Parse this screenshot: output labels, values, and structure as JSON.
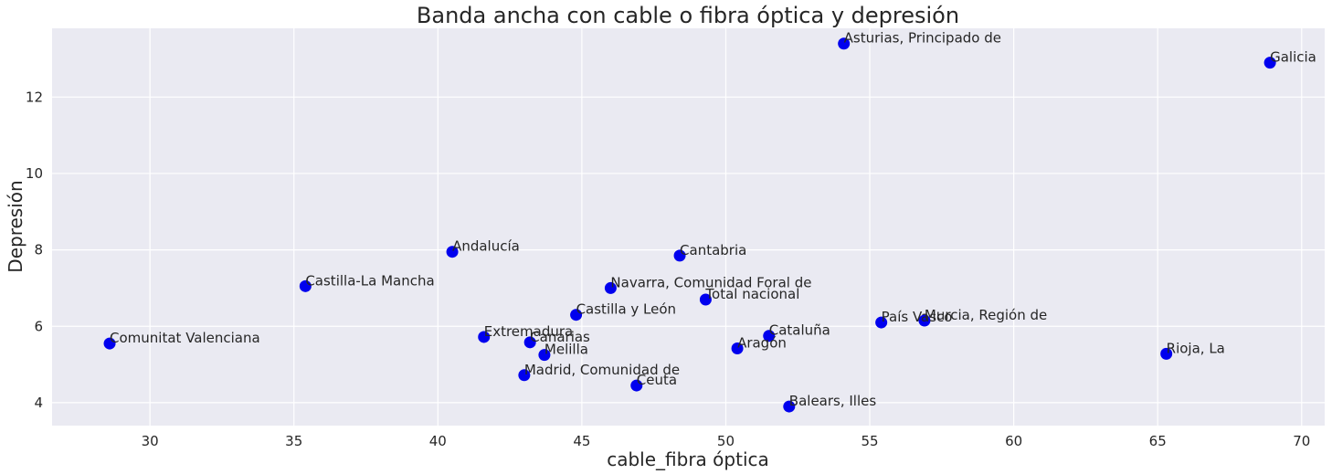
{
  "chart_data": {
    "type": "scatter",
    "title": "Banda ancha con cable o fibra óptica y depresión",
    "xlabel": "cable_fibra óptica",
    "ylabel": "Depresión",
    "xlim": [
      26.6,
      70.8
    ],
    "ylim": [
      3.4,
      13.8
    ],
    "xticks": [
      30,
      35,
      40,
      45,
      50,
      55,
      60,
      65,
      70
    ],
    "yticks": [
      4,
      6,
      8,
      10,
      12
    ],
    "grid": true,
    "point_color": "#0000ee",
    "background_color": "#eaeaf2",
    "points": [
      {
        "label": "Asturias, Principado de",
        "x": 54.1,
        "y": 13.4
      },
      {
        "label": "Galicia",
        "x": 68.9,
        "y": 12.9
      },
      {
        "label": "Andalucía",
        "x": 40.5,
        "y": 7.95
      },
      {
        "label": "Cantabria",
        "x": 48.4,
        "y": 7.85
      },
      {
        "label": "Castilla-La Mancha",
        "x": 35.4,
        "y": 7.05
      },
      {
        "label": "Navarra, Comunidad Foral de",
        "x": 46.0,
        "y": 7.0
      },
      {
        "label": "Total nacional",
        "x": 49.3,
        "y": 6.7
      },
      {
        "label": "Castilla y León",
        "x": 44.8,
        "y": 6.3
      },
      {
        "label": "País Vasco",
        "x": 55.4,
        "y": 6.1
      },
      {
        "label": "Murcia, Región de",
        "x": 56.9,
        "y": 6.15
      },
      {
        "label": "Cataluña",
        "x": 51.5,
        "y": 5.75
      },
      {
        "label": "Extremadura",
        "x": 41.6,
        "y": 5.72
      },
      {
        "label": "Canarias",
        "x": 43.2,
        "y": 5.58
      },
      {
        "label": "Comunitat Valenciana",
        "x": 28.6,
        "y": 5.55
      },
      {
        "label": "Aragón",
        "x": 50.4,
        "y": 5.42
      },
      {
        "label": "Melilla",
        "x": 43.7,
        "y": 5.25
      },
      {
        "label": "Rioja, La",
        "x": 65.3,
        "y": 5.28
      },
      {
        "label": "Madrid, Comunidad de",
        "x": 43.0,
        "y": 4.72
      },
      {
        "label": "Ceuta",
        "x": 46.9,
        "y": 4.45
      },
      {
        "label": "Balears, Illes",
        "x": 52.2,
        "y": 3.9
      }
    ]
  }
}
